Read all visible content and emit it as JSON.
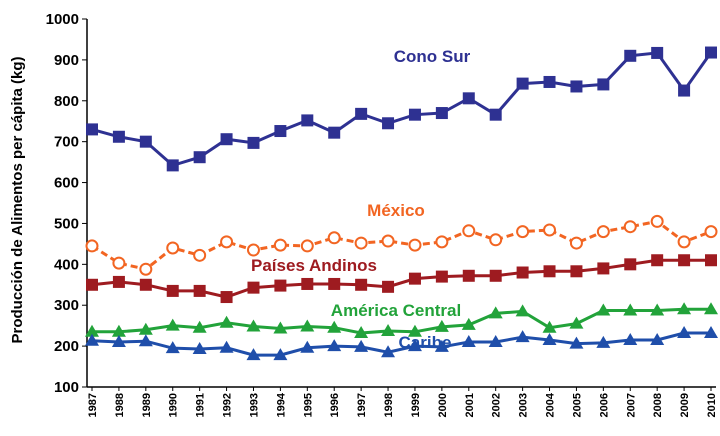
{
  "chart_data": {
    "type": "line",
    "y_label": "Producción de Alimentos per cápita (kg)",
    "categories": [
      "1987",
      "1988",
      "1989",
      "1990",
      "1991",
      "1992",
      "1993",
      "1994",
      "1995",
      "1996",
      "1997",
      "1998",
      "1999",
      "2000",
      "2001",
      "2002",
      "2003",
      "2004",
      "2005",
      "2006",
      "2007",
      "2008",
      "2009",
      "2010"
    ],
    "ylim": [
      100,
      1000
    ],
    "yticks": [
      100,
      200,
      300,
      400,
      500,
      600,
      700,
      800,
      900,
      1000
    ],
    "grid": false,
    "series": [
      {
        "name": "Cono Sur",
        "color": "#2e3192",
        "marker": "square",
        "dashed": false,
        "values": [
          730,
          712,
          700,
          642,
          662,
          706,
          697,
          726,
          752,
          722,
          768,
          745,
          766,
          770,
          806,
          766,
          842,
          846,
          835,
          840,
          910,
          917,
          825,
          918
        ]
      },
      {
        "name": "México",
        "color": "#f26522",
        "marker": "open-circle",
        "dashed": true,
        "values": [
          445,
          403,
          388,
          440,
          422,
          455,
          435,
          447,
          445,
          465,
          452,
          457,
          447,
          455,
          482,
          460,
          480,
          484,
          452,
          480,
          492,
          505,
          455,
          480
        ]
      },
      {
        "name": "Países Andinos",
        "color": "#9e1b20",
        "marker": "square",
        "dashed": false,
        "values": [
          350,
          357,
          350,
          335,
          335,
          320,
          343,
          348,
          352,
          352,
          350,
          345,
          365,
          370,
          372,
          372,
          380,
          383,
          383,
          390,
          400,
          410,
          410,
          410
        ]
      },
      {
        "name": "América Central",
        "color": "#22a33a",
        "marker": "triangle",
        "dashed": false,
        "values": [
          235,
          235,
          240,
          250,
          245,
          257,
          248,
          243,
          248,
          245,
          232,
          237,
          235,
          247,
          252,
          280,
          285,
          245,
          255,
          287,
          287,
          287,
          290,
          290
        ]
      },
      {
        "name": "Caribe",
        "color": "#1f4eaa",
        "marker": "triangle",
        "dashed": false,
        "values": [
          213,
          210,
          212,
          195,
          193,
          196,
          178,
          178,
          196,
          200,
          198,
          185,
          200,
          198,
          210,
          210,
          222,
          215,
          206,
          208,
          215,
          215,
          232,
          232
        ]
      }
    ]
  }
}
